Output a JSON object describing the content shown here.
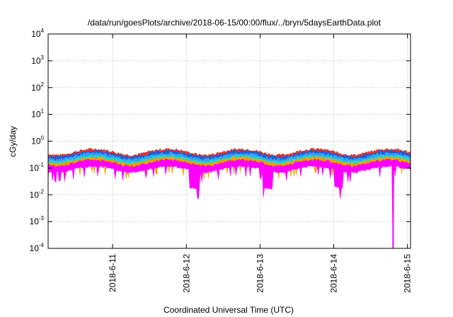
{
  "chart_data": {
    "type": "area",
    "title": "/data/run/goesPlots/archive/2018-06-15/00:00/flux/../bryn/5daysEarthData.plot",
    "xlabel": "Coordinated Universal Time (UTC)",
    "ylabel": "cGy/day",
    "y_scale": "log",
    "ylim": [
      0.0001,
      10000
    ],
    "y_ticks": [
      {
        "value": 0.0001,
        "base": "10",
        "exp": "-4"
      },
      {
        "value": 0.001,
        "base": "10",
        "exp": "-3"
      },
      {
        "value": 0.01,
        "base": "10",
        "exp": "-2"
      },
      {
        "value": 0.1,
        "base": "10",
        "exp": "-1"
      },
      {
        "value": 1,
        "base": "10",
        "exp": "0"
      },
      {
        "value": 10,
        "base": "10",
        "exp": "1"
      },
      {
        "value": 100,
        "base": "10",
        "exp": "2"
      },
      {
        "value": 1000,
        "base": "10",
        "exp": "3"
      },
      {
        "value": 10000,
        "base": "10",
        "exp": "4"
      }
    ],
    "xlim": [
      "2018-06-10T03:00",
      "2018-06-15T01:00"
    ],
    "x_ticks": [
      {
        "value": "2018-06-11T00:00",
        "label": "2018-6-11"
      },
      {
        "value": "2018-06-12T00:00",
        "label": "2018-6-12"
      },
      {
        "value": "2018-06-13T00:00",
        "label": "2018-6-13"
      },
      {
        "value": "2018-06-14T00:00",
        "label": "2018-6-14"
      },
      {
        "value": "2018-06-15T00:00",
        "label": "2018-6-15"
      }
    ],
    "grid": true,
    "series": [
      {
        "color": "#e8322a",
        "base": 0.36
      },
      {
        "color": "#1f5fd6",
        "base": 0.31
      },
      {
        "color": "#2ea6f2",
        "base": 0.25
      },
      {
        "color": "#2dd4c4",
        "base": 0.205
      },
      {
        "color": "#f0a000",
        "base": 0.175
      },
      {
        "color": "#ff00ff",
        "base": 0.14
      }
    ],
    "annotations": [
      {
        "series": 5,
        "x_start": "2018-06-14T19:05",
        "x_end": "2018-06-14T19:25",
        "y_min": 0.0001,
        "description_value": "dropout below 1e-4"
      }
    ]
  }
}
